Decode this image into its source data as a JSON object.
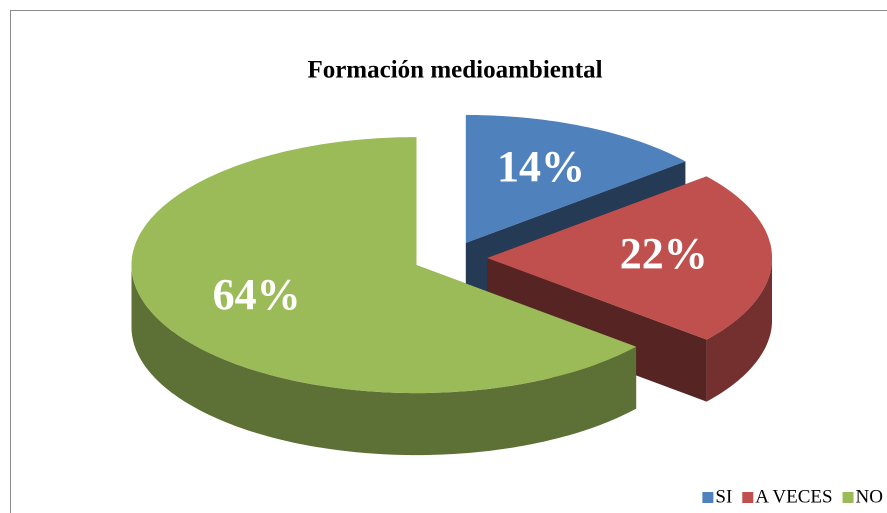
{
  "chart_data": {
    "type": "pie3d",
    "title": "Formación medioambiental",
    "categories": [
      "SI",
      "A VECES",
      "NO"
    ],
    "values": [
      14,
      22,
      64
    ],
    "value_labels": [
      "14%",
      "22%",
      "64%"
    ],
    "colors": [
      "#4f81bd",
      "#c0504d",
      "#9bbb59"
    ],
    "legend": "bottom-right"
  }
}
